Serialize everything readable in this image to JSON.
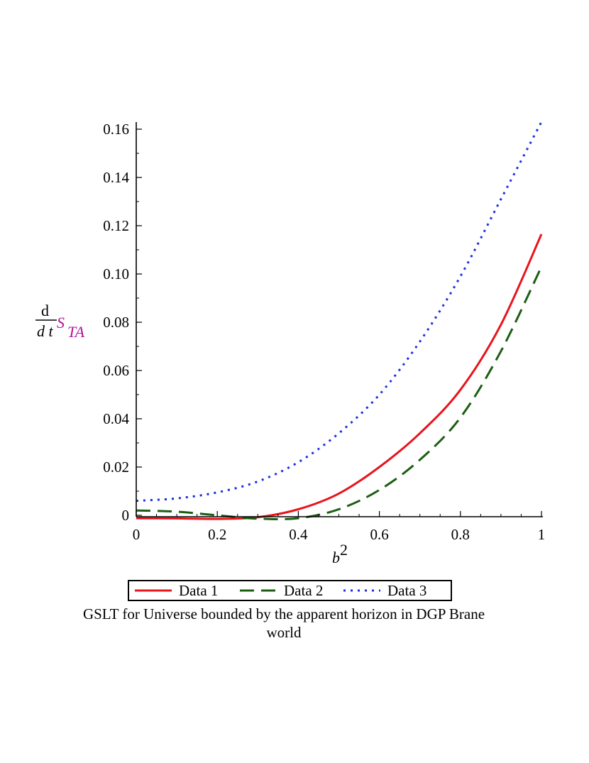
{
  "chart_data": {
    "type": "line",
    "title": "",
    "xlabel": "b",
    "xlabel_superscript": "2",
    "ylabel": {
      "numerator": "d",
      "denominator": "d t",
      "symbol": "S",
      "subscript": "TA"
    },
    "xlim": [
      0,
      1
    ],
    "ylim": [
      -0.001,
      0.163
    ],
    "x_ticks": [
      0,
      0.2,
      0.4,
      0.6,
      0.8,
      1
    ],
    "x_tick_labels": [
      "0",
      "0.2",
      "0.4",
      "0.6",
      "0.8",
      "1"
    ],
    "y_ticks": [
      0,
      0.02,
      0.04,
      0.06,
      0.08,
      0.1,
      0.12,
      0.14,
      0.16
    ],
    "y_tick_labels": [
      "0",
      "0.02",
      "0.04",
      "0.06",
      "0.08",
      "0.10",
      "0.12",
      "0.14",
      "0.16"
    ],
    "x": [
      0,
      0.1,
      0.2,
      0.3,
      0.4,
      0.5,
      0.6,
      0.7,
      0.8,
      0.9,
      1.0
    ],
    "series": [
      {
        "name": "Data 1",
        "color": "#e8141c",
        "dash": "solid",
        "values": [
          -0.0012,
          -0.0013,
          -0.0015,
          -0.0008,
          0.0025,
          0.009,
          0.02,
          0.034,
          0.052,
          0.079,
          0.1165
        ]
      },
      {
        "name": "Data 2",
        "color": "#1b5e12",
        "dash": "dashed",
        "values": [
          0.002,
          0.0015,
          0.0,
          -0.0014,
          -0.0012,
          0.0025,
          0.0105,
          0.023,
          0.0405,
          0.068,
          0.103
        ]
      },
      {
        "name": "Data 3",
        "color": "#1c2ee0",
        "dash": "dotted",
        "values": [
          0.006,
          0.007,
          0.0095,
          0.014,
          0.022,
          0.034,
          0.05,
          0.072,
          0.099,
          0.131,
          0.163
        ]
      }
    ],
    "legend_position": "bottom",
    "grid": false
  },
  "caption": {
    "line1": "GSLT for Universe bounded by the apparent horizon in DGP Brane",
    "line2": "world"
  }
}
